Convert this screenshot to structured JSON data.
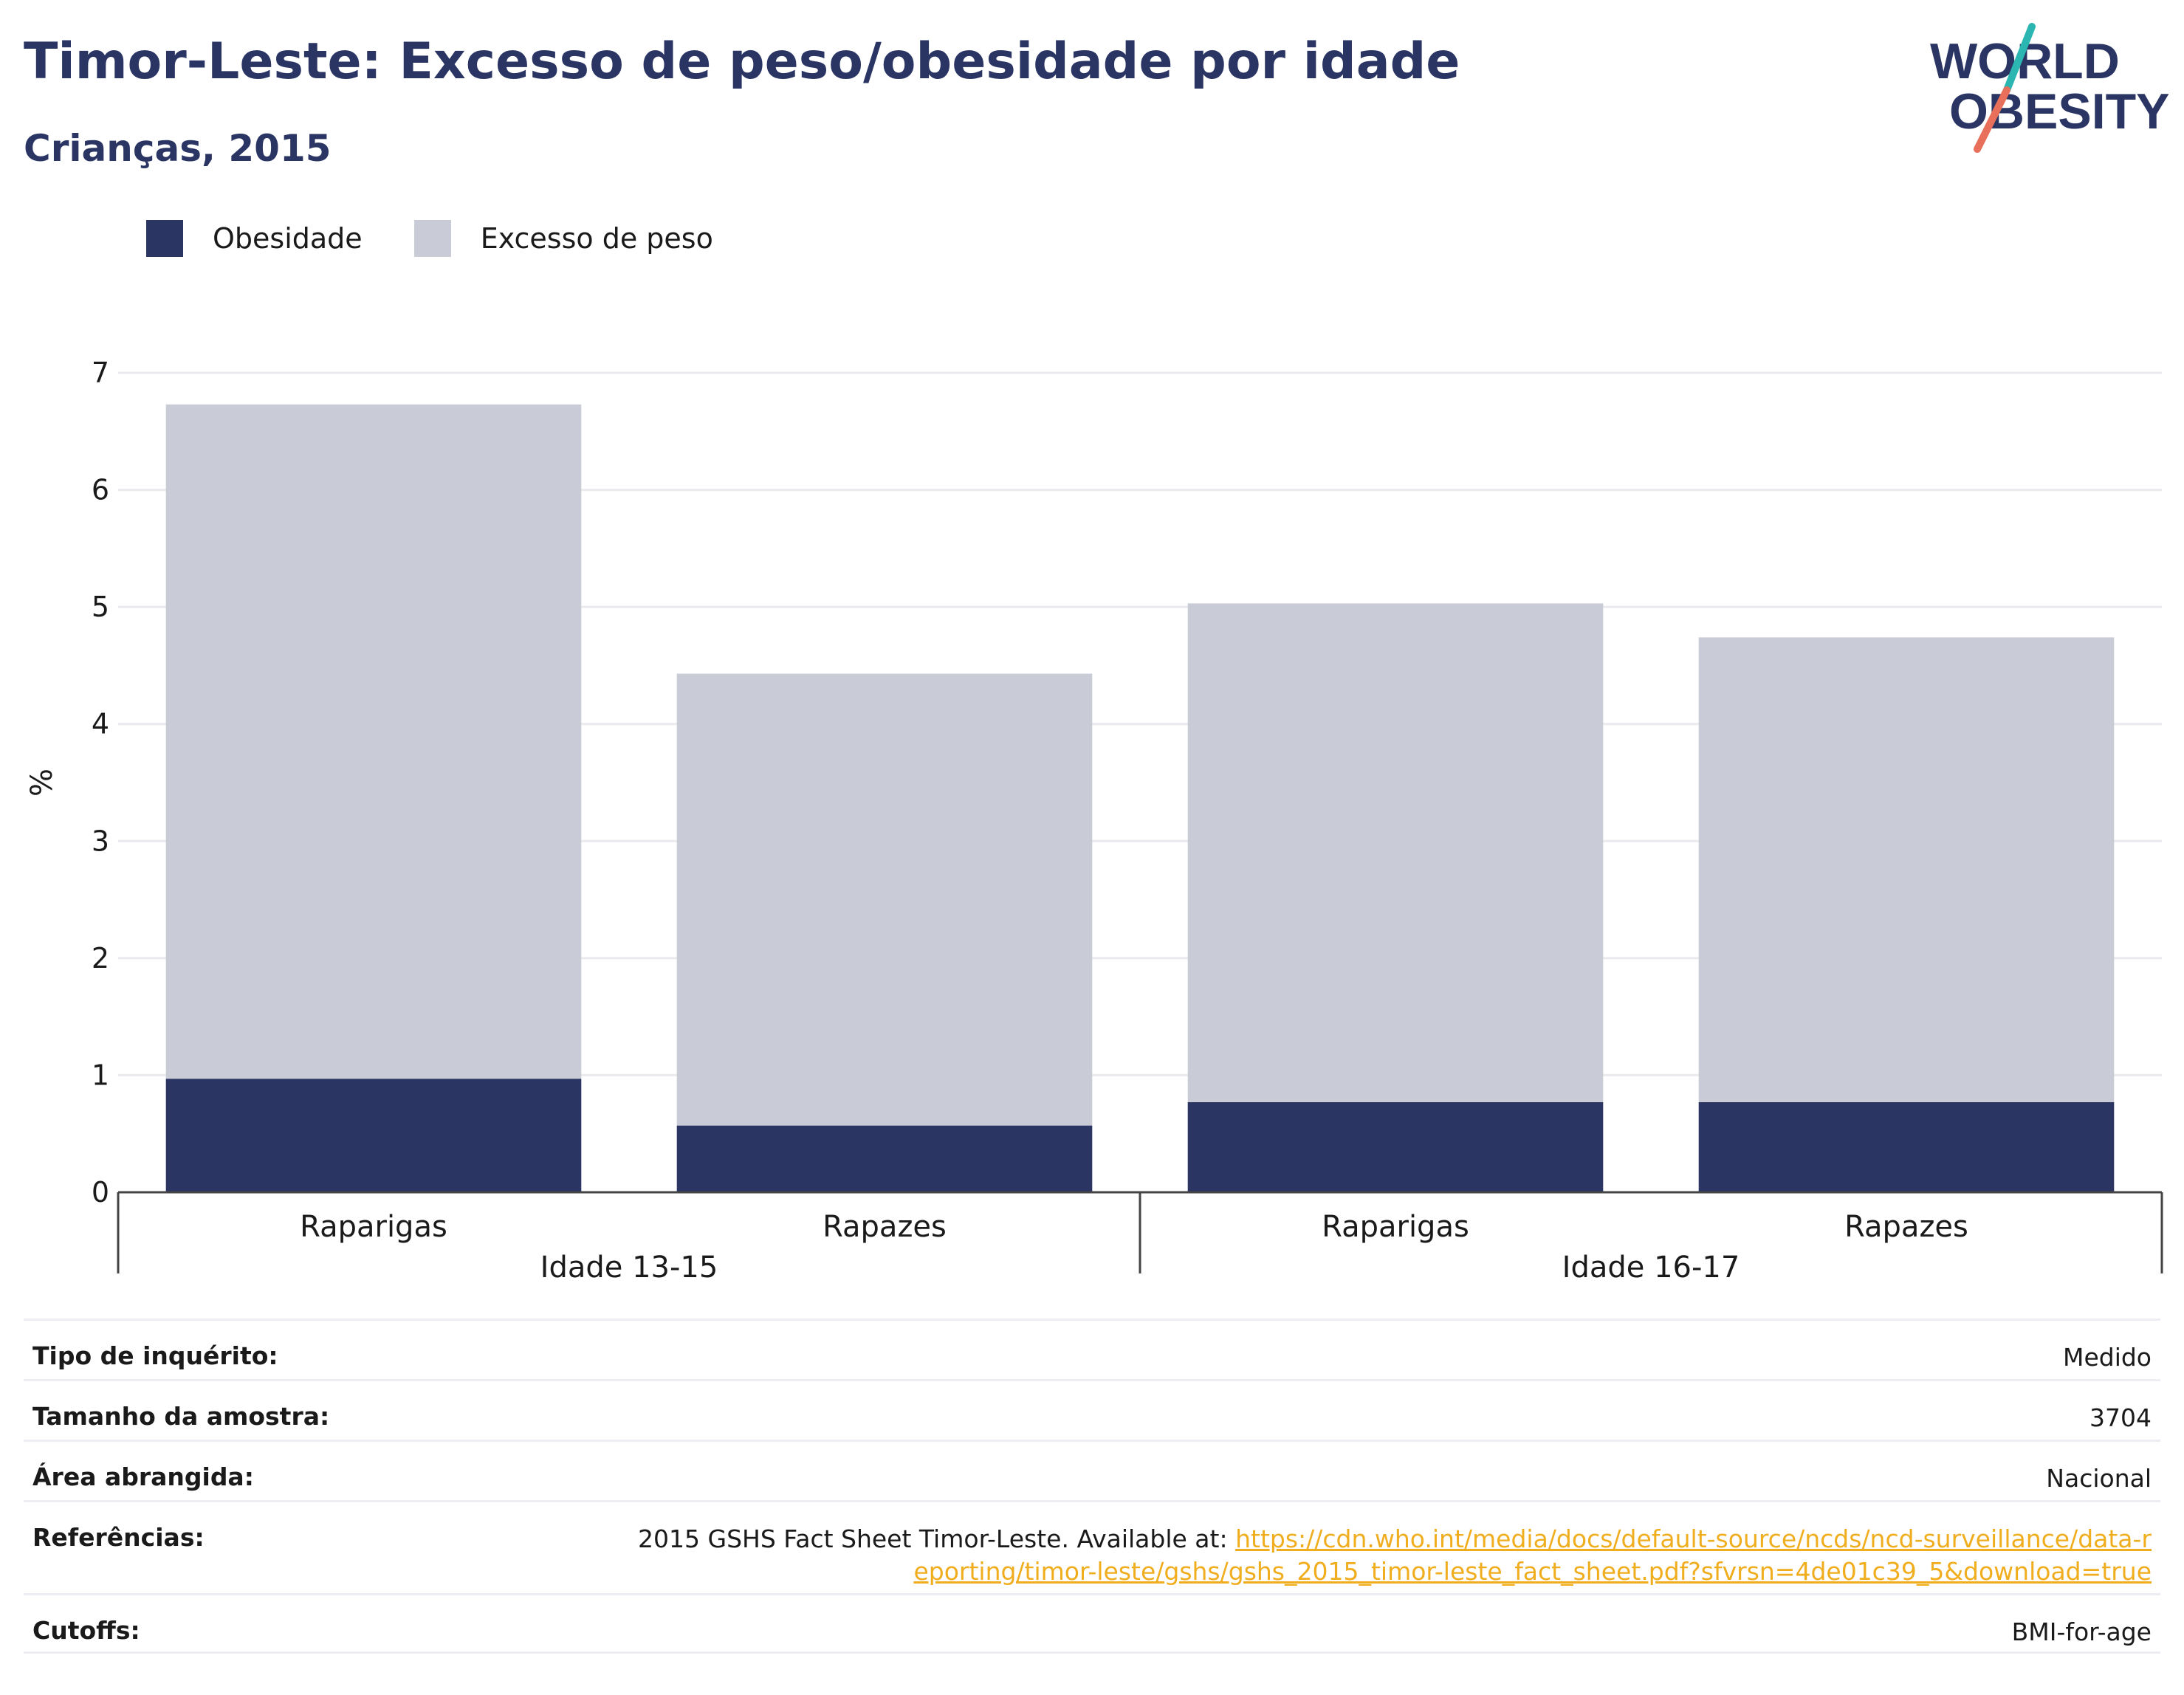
{
  "header": {
    "title": "Timor-Leste: Excesso de peso/obesidade por idade",
    "subtitle": "Crianças, 2015"
  },
  "logo": {
    "line1": "WORLD",
    "line2": "OBESITY"
  },
  "colors": {
    "obesity": "#2a3564",
    "overweight": "#c9cbd6",
    "title": "#2a3564",
    "logo_teal": "#2bb6b2",
    "logo_coral": "#e8705b",
    "link": "#f0ad1e"
  },
  "chart_data": {
    "type": "bar",
    "stacked": true,
    "ylabel": "%",
    "ylim": [
      0,
      7
    ],
    "yticks": [
      0,
      1,
      2,
      3,
      4,
      5,
      6,
      7
    ],
    "grid": true,
    "legend_position": "top-left",
    "categories": [
      "Raparigas",
      "Rapazes",
      "Raparigas",
      "Rapazes"
    ],
    "groups": [
      {
        "label": "Idade 13-15",
        "members": [
          0,
          1
        ]
      },
      {
        "label": "Idade 16-17",
        "members": [
          2,
          3
        ]
      }
    ],
    "series": [
      {
        "name": "Obesidade",
        "color": "#2a3564",
        "values": [
          0.97,
          0.57,
          0.77,
          0.77
        ]
      },
      {
        "name": "Excesso de peso",
        "color": "#c9cbd6",
        "values": [
          5.76,
          3.86,
          4.26,
          3.97
        ]
      }
    ]
  },
  "info": [
    {
      "label": "Tipo de inquérito:",
      "value": "Medido"
    },
    {
      "label": "Tamanho da amostra:",
      "value": "3704"
    },
    {
      "label": "Área abrangida:",
      "value": "Nacional"
    },
    {
      "label": "Referências:",
      "value": "2015 GSHS Fact Sheet Timor-Leste. Available at: ",
      "link": "https://cdn.who.int/media/docs/default-source/ncds/ncd-surveillance/data-reporting/timor-leste/gshs/gshs_2015_timor-leste_fact_sheet.pdf?sfvrsn=4de01c39_5&download=true"
    },
    {
      "label": "Cutoffs:",
      "value": "BMI-for-age"
    }
  ]
}
